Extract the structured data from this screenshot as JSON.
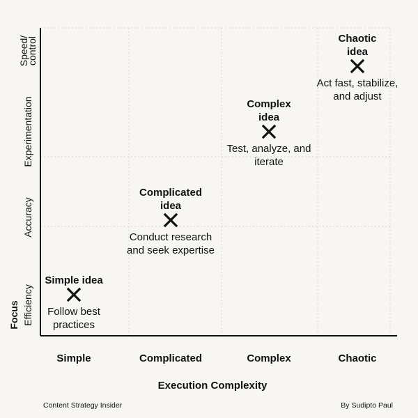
{
  "chart_data": {
    "type": "scatter",
    "title": "",
    "xlabel": "Execution Complexity",
    "ylabel": "Focus",
    "x_categories": [
      "Simple",
      "Complicated",
      "Complex",
      "Chaotic"
    ],
    "y_categories": [
      "Efficiency",
      "Accuracy",
      "Experimentation",
      "Speed/\ncontrol"
    ],
    "grid": true,
    "points": [
      {
        "x": "Simple",
        "y": "Efficiency",
        "title": "Simple idea",
        "description": "Follow best\npractices"
      },
      {
        "x": "Complicated",
        "y": "Accuracy",
        "title": "Complicated\nidea",
        "description": "Conduct research\nand seek expertise"
      },
      {
        "x": "Complex",
        "y": "Experimentation",
        "title": "Complex\nidea",
        "description": "Test, analyze, and\niterate"
      },
      {
        "x": "Chaotic",
        "y": "Speed/\ncontrol",
        "title": "Chaotic\nidea",
        "description": "Act fast, stabilize,\nand adjust"
      }
    ]
  },
  "footer": {
    "left": "Content Strategy Insider",
    "right": "By Sudipto Paul"
  },
  "colors": {
    "background": "#f8f6f3",
    "ink": "#111111",
    "grid": "#d9d6d1"
  }
}
